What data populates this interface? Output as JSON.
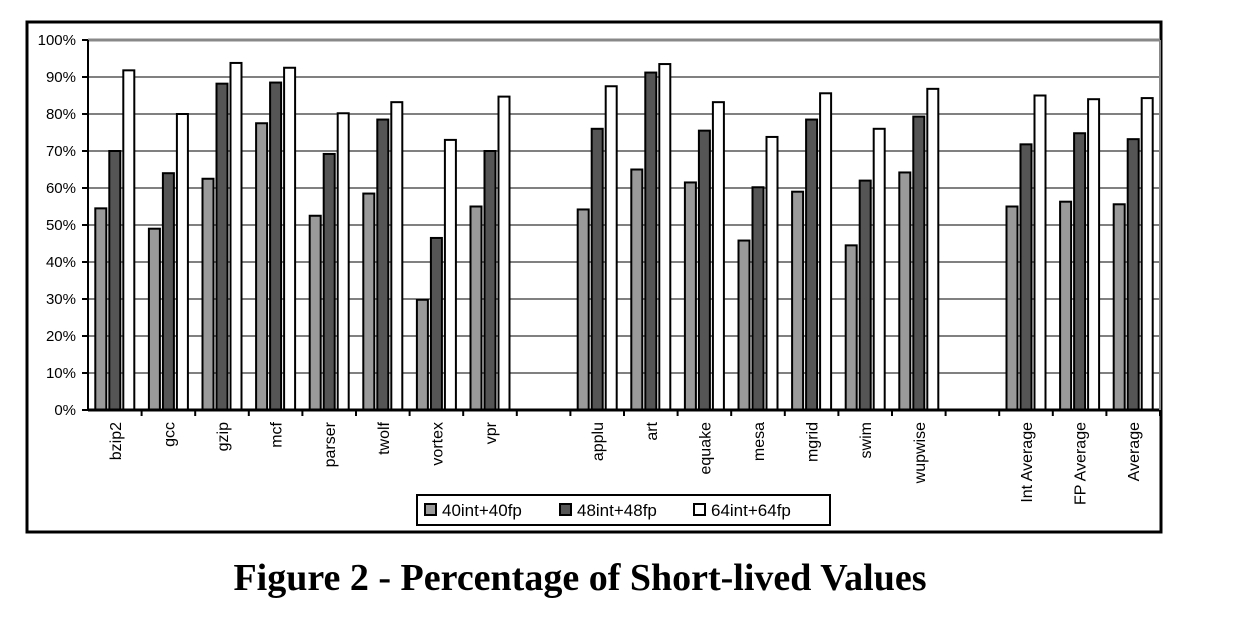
{
  "caption": "Figure 2 - Percentage of Short-lived Values",
  "chart_data": {
    "type": "bar",
    "categories": [
      "bzip2",
      "gcc",
      "gzip",
      "mcf",
      "parser",
      "twolf",
      "vortex",
      "vpr",
      "",
      "applu",
      "art",
      "equake",
      "mesa",
      "mgrid",
      "swim",
      "wupwise",
      "",
      "Int Average",
      "FP Average",
      "Average"
    ],
    "series": [
      {
        "name": "40int+40fp",
        "color": "#9a9a9a",
        "values": [
          54.5,
          49,
          62.5,
          77.5,
          52.5,
          58.5,
          29.8,
          55,
          null,
          54.2,
          65,
          61.5,
          45.8,
          59,
          44.5,
          64.2,
          null,
          55,
          56.3,
          55.6
        ]
      },
      {
        "name": "48int+48fp",
        "color": "#555555",
        "values": [
          70,
          64,
          88.2,
          88.5,
          69.2,
          78.5,
          46.5,
          70,
          null,
          76,
          91.2,
          75.5,
          60.2,
          78.5,
          62,
          79.3,
          null,
          71.8,
          74.8,
          73.2
        ]
      },
      {
        "name": "64int+64fp",
        "color": "#ffffff",
        "values": [
          91.8,
          80,
          93.8,
          92.5,
          80.2,
          83.2,
          73,
          84.7,
          null,
          87.5,
          93.5,
          83.2,
          73.8,
          85.6,
          76,
          86.8,
          null,
          85,
          84,
          84.3
        ]
      }
    ],
    "ylim": [
      0,
      100
    ],
    "yticks": [
      "0%",
      "10%",
      "20%",
      "30%",
      "40%",
      "50%",
      "60%",
      "70%",
      "80%",
      "90%",
      "100%"
    ],
    "grid": true,
    "legend_position": "bottom-center"
  }
}
